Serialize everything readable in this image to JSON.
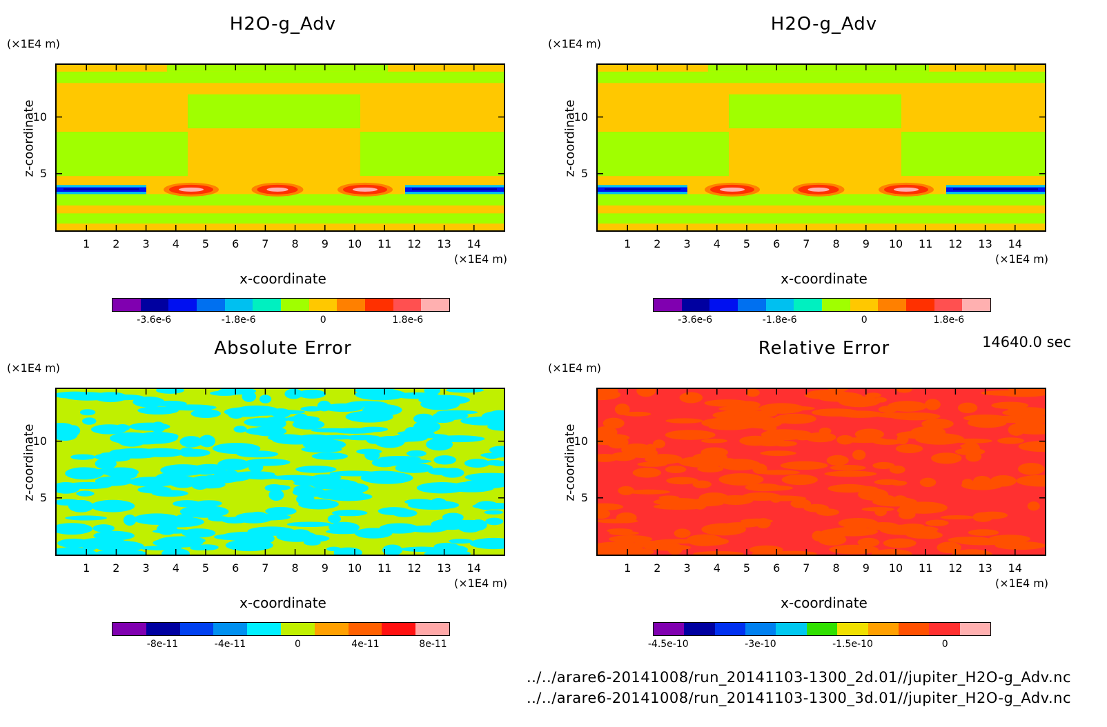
{
  "timestamp": "14640.0 sec",
  "files": [
    "../../arare6-20141008/run_20141103-1300_2d.01//jupiter_H2O-g_Adv.nc",
    "../../arare6-20141008/run_20141103-1300_3d.01//jupiter_H2O-g_Adv.nc"
  ],
  "common": {
    "x_label": "x-coordinate",
    "z_label": "z-coordinate",
    "x_unit": "(×1E4 m)",
    "z_unit": "(×1E4 m)",
    "x_ticks": [
      "1",
      "2",
      "3",
      "4",
      "5",
      "6",
      "7",
      "8",
      "9",
      "10",
      "11",
      "12",
      "13",
      "14"
    ],
    "z_ticks": [
      "5",
      "10"
    ]
  },
  "chart_data": [
    {
      "type": "heatmap",
      "title": "H2O-g_Adv",
      "xlabel": "x-coordinate",
      "ylabel": "z-coordinate",
      "xlim": [
        0,
        15
      ],
      "ylim": [
        0,
        14.6
      ],
      "colorbar_colors": [
        "#8000b0",
        "#0000a0",
        "#0010f0",
        "#0070f0",
        "#00c0f0",
        "#00f0c0",
        "#a0ff00",
        "#ffc800",
        "#ff8000",
        "#ff3000",
        "#ff5050",
        "#ffb0b0"
      ],
      "colorbar_ticks": [
        "-3.6e-6",
        "-1.8e-6",
        "0",
        "1.8e-6"
      ],
      "field": "advection"
    },
    {
      "type": "heatmap",
      "title": "H2O-g_Adv",
      "xlabel": "x-coordinate",
      "ylabel": "z-coordinate",
      "xlim": [
        0,
        15
      ],
      "ylim": [
        0,
        14.6
      ],
      "colorbar_colors": [
        "#8000b0",
        "#0000a0",
        "#0010f0",
        "#0070f0",
        "#00c0f0",
        "#00f0c0",
        "#a0ff00",
        "#ffc800",
        "#ff8000",
        "#ff3000",
        "#ff5050",
        "#ffb0b0"
      ],
      "colorbar_ticks": [
        "-3.6e-6",
        "-1.8e-6",
        "0",
        "1.8e-6"
      ],
      "field": "advection"
    },
    {
      "type": "heatmap",
      "title": "Absolute Error",
      "xlabel": "x-coordinate",
      "ylabel": "z-coordinate",
      "xlim": [
        0,
        15
      ],
      "ylim": [
        0,
        14.6
      ],
      "colorbar_colors": [
        "#8000b0",
        "#0000a0",
        "#0040f0",
        "#0090f0",
        "#00f0ff",
        "#c0f000",
        "#ffa000",
        "#ff6000",
        "#ff1010",
        "#ffa8a8"
      ],
      "colorbar_ticks": [
        "-8e-11",
        "-4e-11",
        "0",
        "4e-11",
        "8e-11"
      ],
      "field": "abs-error"
    },
    {
      "type": "heatmap",
      "title": "Relative Error",
      "xlabel": "x-coordinate",
      "ylabel": "z-coordinate",
      "xlim": [
        0,
        15
      ],
      "ylim": [
        0,
        14.6
      ],
      "colorbar_colors": [
        "#8000b0",
        "#0000a0",
        "#0030f0",
        "#0080f0",
        "#00c8f0",
        "#30e000",
        "#f0e000",
        "#ffa000",
        "#ff5000",
        "#ff3030",
        "#ffb0b0"
      ],
      "colorbar_ticks": [
        "-4.5e-10",
        "-3e-10",
        "-1.5e-10",
        "0"
      ],
      "field": "rel-error"
    }
  ]
}
